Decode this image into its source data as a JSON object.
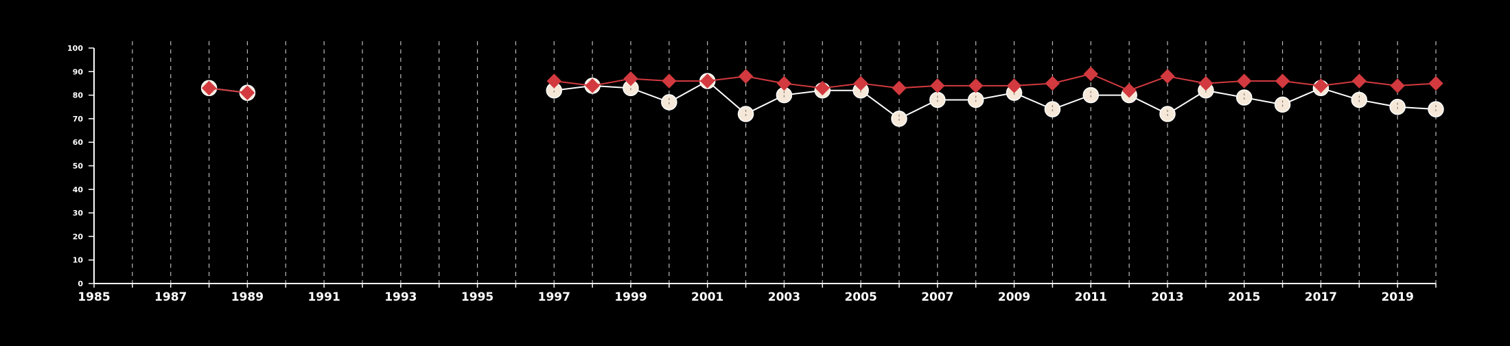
{
  "chart_data": {
    "type": "line",
    "title": "",
    "xlabel": "",
    "ylabel": "",
    "xlim": [
      1985,
      2020
    ],
    "ylim": [
      0,
      100
    ],
    "y_ticks": [
      0,
      10,
      20,
      30,
      40,
      50,
      60,
      70,
      80,
      90,
      100
    ],
    "x_tick_labels": [
      "1985",
      "1987",
      "1989",
      "1991",
      "1993",
      "1995",
      "1997",
      "1999",
      "2001",
      "2003",
      "2005",
      "2007",
      "2009",
      "2011",
      "2013",
      "2015",
      "2017",
      "2019"
    ],
    "grid": "vertical dashed lines at each year",
    "legend": "none",
    "series": [
      {
        "marker": "diamond",
        "color": "#d23a3f",
        "segments": [
          {
            "x": [
              1988,
              1989
            ],
            "y": [
              83,
              81
            ]
          },
          {
            "x": [
              1997,
              1998,
              1999,
              2000,
              2001,
              2002,
              2003,
              2004,
              2005,
              2006,
              2007,
              2008,
              2009,
              2010,
              2011,
              2012,
              2013,
              2014,
              2015,
              2016,
              2017,
              2018,
              2019,
              2020
            ],
            "y": [
              86,
              84,
              87,
              86,
              86,
              88,
              85,
              83,
              85,
              83,
              84,
              84,
              84,
              85,
              89,
              82,
              88,
              85,
              86,
              86,
              84,
              86,
              84,
              85
            ]
          }
        ]
      },
      {
        "marker": "circle",
        "color": "#f5e8d8",
        "segments": [
          {
            "x": [
              1988,
              1989
            ],
            "y": [
              83,
              81
            ]
          },
          {
            "x": [
              1997,
              1998,
              1999,
              2000,
              2001,
              2002,
              2003,
              2004,
              2005,
              2006,
              2007,
              2008,
              2009,
              2010,
              2011,
              2012,
              2013,
              2014,
              2015,
              2016,
              2017,
              2018,
              2019,
              2020
            ],
            "y": [
              82,
              84,
              83,
              77,
              86,
              72,
              80,
              82,
              82,
              70,
              78,
              78,
              81,
              74,
              80,
              80,
              72,
              82,
              79,
              76,
              83,
              78,
              75,
              74
            ]
          }
        ]
      }
    ]
  },
  "colors": {
    "background": "#000000",
    "axis": "#ffffff",
    "grid": "#bbbbbb"
  }
}
